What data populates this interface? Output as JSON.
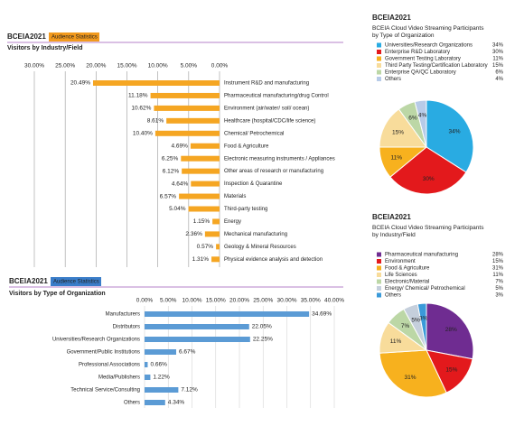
{
  "chart_data": [
    {
      "type": "bar",
      "orientation": "horizontal",
      "brand": "BCEIA",
      "year": "2021",
      "subtitle": "Audience Statistics",
      "title": "Visitors by Industry/Field",
      "color": "#f5a623",
      "categories": [
        "Instrument R&D and manufacturing",
        "Pharmaceutical manufacturing/drug Control",
        "Environment (air/water/ soil/ ocean)",
        "Healthcare (hospital/CDC/life science)",
        "Chemical/ Petrochemical",
        "Food & Agriculture",
        "Electronic measuring instruments / Appliances",
        "Other areas of research or manufacturing",
        "Inspection & Quarantine",
        "Materials",
        "Third-party testing",
        "Energy",
        "Mechanical manufacturing",
        "Geology & Mineral Resources",
        "Physical evidence analysis and detection"
      ],
      "values": [
        20.49,
        11.18,
        10.62,
        8.61,
        10.4,
        4.69,
        6.25,
        6.12,
        4.64,
        6.57,
        5.04,
        1.15,
        2.36,
        0.57,
        1.31
      ],
      "value_labels": [
        "20.49%",
        "11.18%",
        "10.62%",
        "8.61%",
        "10.40%",
        "4.69%",
        "6.25%",
        "6.12%",
        "4.64%",
        "6.57%",
        "5.04%",
        "1.15%",
        "2.36%",
        "0.57%",
        "1.31%"
      ],
      "xlim": [
        30,
        0
      ],
      "xticks": [
        {
          "value": 30,
          "label": "30.00%"
        },
        {
          "value": 25,
          "label": "25.00%"
        },
        {
          "value": 20,
          "label": "20.00%"
        },
        {
          "value": 15,
          "label": "15.00%"
        },
        {
          "value": 10,
          "label": "10.00%"
        },
        {
          "value": 5,
          "label": "5.00%"
        },
        {
          "value": 0,
          "label": "0.00%"
        }
      ],
      "grid": true
    },
    {
      "type": "bar",
      "orientation": "horizontal",
      "brand": "BCEIA",
      "year": "2021",
      "subtitle": "Audience Statistics",
      "title": "Visitors by Type of Organization",
      "color": "#5b9bd5",
      "categories": [
        "Manufacturers",
        "Distributors",
        "Universities/Research Organizations",
        "Government/Public Institutions",
        "Professional Associations",
        "Media/Publishers",
        "Technical Service/Consulting",
        "Others"
      ],
      "values": [
        34.69,
        22.05,
        22.25,
        6.67,
        0.66,
        1.22,
        7.12,
        4.34
      ],
      "value_labels": [
        "34.69%",
        "22.05%",
        "22.25%",
        "6.67%",
        "0.66%",
        "1.22%",
        "7.12%",
        "4.34%"
      ],
      "xlim": [
        0,
        40
      ],
      "xticks": [
        {
          "value": 0,
          "label": "0.00%"
        },
        {
          "value": 5,
          "label": "5.00%"
        },
        {
          "value": 10,
          "label": "10.00%"
        },
        {
          "value": 15,
          "label": "15.00%"
        },
        {
          "value": 20,
          "label": "20.00%"
        },
        {
          "value": 25,
          "label": "25.00%"
        },
        {
          "value": 30,
          "label": "30.00%"
        },
        {
          "value": 35,
          "label": "35.00%"
        },
        {
          "value": 40,
          "label": "40.00%"
        }
      ],
      "grid": true
    },
    {
      "type": "pie",
      "brand": "BCEIA",
      "year": "2021",
      "title": "BCEIA Cloud Video Streaming Participants by Type of Organization",
      "categories": [
        "Universities/Research Organizations",
        "Enterprise R&D Laboratory",
        "Government Testing Laboratory",
        "Third Party Testing/Certification Laboratory",
        "Enterprise QA/QC Laboratory",
        "Others"
      ],
      "values": [
        34,
        30,
        11,
        15,
        6,
        4
      ],
      "value_labels": [
        "34%",
        "30%",
        "11%",
        "15%",
        "6%",
        "4%"
      ],
      "colors": [
        "#29abe2",
        "#e3191c",
        "#f7b11e",
        "#f8dc9b",
        "#bcd7a6",
        "#b7cbe8"
      ]
    },
    {
      "type": "pie",
      "brand": "BCEIA",
      "year": "2021",
      "title": "BCEIA Cloud Video Streaming Participants by Industry/Field",
      "categories": [
        "Pharmaceutical manufacturing",
        "Environment",
        "Food & Agriculture",
        "Life Sciences",
        "Electronic/Material",
        "Energy/ Chemical/ Petrochemical",
        "Others"
      ],
      "values": [
        28,
        15,
        31,
        11,
        7,
        5,
        3
      ],
      "value_labels": [
        "28%",
        "15%",
        "31%",
        "11%",
        "7%",
        "5%",
        "3%"
      ],
      "colors": [
        "#6f2c91",
        "#e3191c",
        "#f7b11e",
        "#f8dc9b",
        "#bcd7a6",
        "#c5cfdc",
        "#3a9ad9"
      ]
    }
  ]
}
